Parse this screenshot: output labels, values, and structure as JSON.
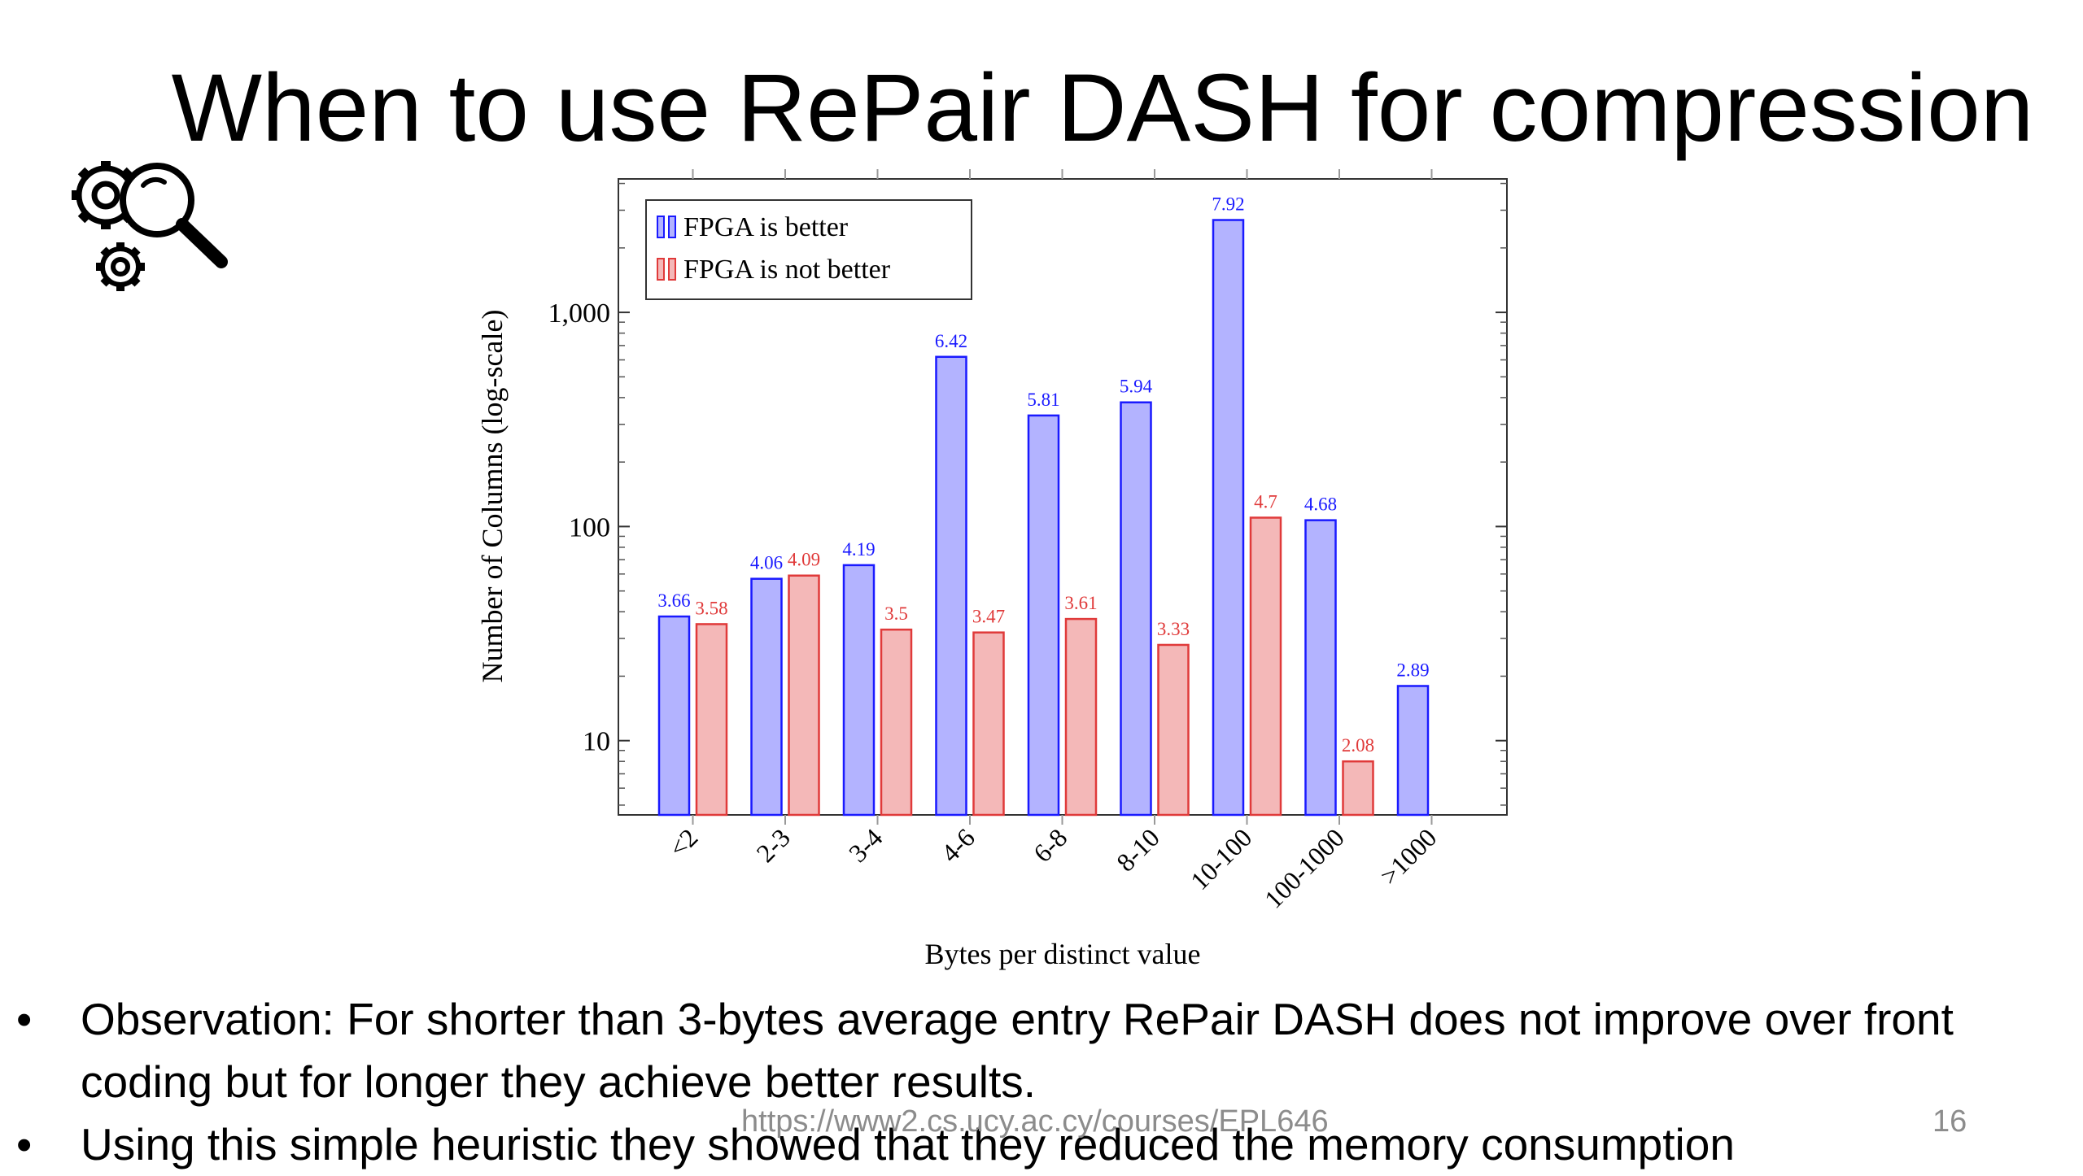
{
  "slide": {
    "title": "When to use RePair DASH for compression",
    "bullets": [
      "Observation: For shorter than 3-bytes average entry RePair DASH does not improve over front coding but for longer they achieve better results.",
      "Using this simple heuristic they showed that they reduced the memory consumption"
    ],
    "footer_url": "https://www2.cs.ucy.ac.cy/courses/EPL646",
    "page_number": "16",
    "icon": "gears-magnifier-icon"
  },
  "chart_data": {
    "type": "bar",
    "title": "",
    "xlabel": "Bytes per distinct value",
    "ylabel": "Number of Columns (log-scale)",
    "yscale": "log",
    "ylim": [
      4.5,
      4200
    ],
    "yticks": [
      10,
      100,
      1000
    ],
    "ytick_labels": [
      "10",
      "100",
      "1,000"
    ],
    "categories": [
      "<2",
      "2-3",
      "3-4",
      "4-6",
      "6-8",
      "8-10",
      "10-100",
      "100-1000",
      ">1000"
    ],
    "legend_position": "top-left",
    "grid": false,
    "series": [
      {
        "name": "FPGA is better",
        "fill": "#b3b3ff",
        "stroke": "#1a1aff",
        "label_color": "#1a1aff",
        "values": [
          38,
          57,
          66,
          620,
          330,
          380,
          2700,
          107,
          18
        ],
        "labels": [
          "3.66",
          "4.06",
          "4.19",
          "6.42",
          "5.81",
          "5.94",
          "7.92",
          "4.68",
          "2.89"
        ]
      },
      {
        "name": "FPGA is not better",
        "fill": "#f4b8b8",
        "stroke": "#e03a3a",
        "label_color": "#e03a3a",
        "values": [
          35,
          59,
          33,
          32,
          37,
          28,
          110,
          8,
          null
        ],
        "labels": [
          "3.58",
          "4.09",
          "3.5",
          "3.47",
          "3.61",
          "3.33",
          "4.7",
          "2.08",
          null
        ]
      }
    ]
  }
}
